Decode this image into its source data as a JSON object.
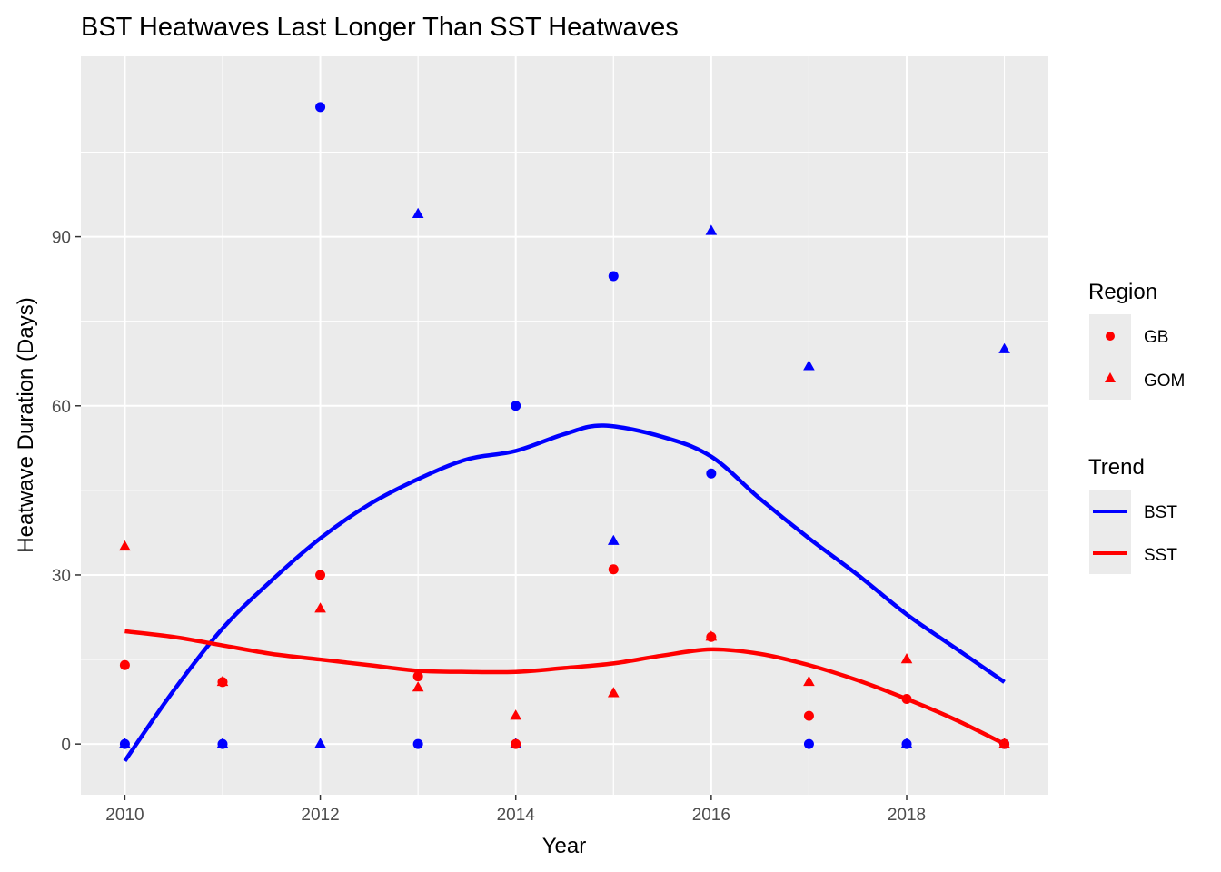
{
  "chart_data": {
    "type": "scatter",
    "title": "BST Heatwaves Last Longer Than SST Heatwaves",
    "xlabel": "Year",
    "ylabel": "Heatwave Duration (Days)",
    "xlim": [
      2009.55,
      2019.45
    ],
    "ylim": [
      -9,
      122
    ],
    "x_ticks": [
      2010,
      2012,
      2014,
      2016,
      2018
    ],
    "y_ticks": [
      0,
      30,
      60,
      90
    ],
    "grid": true,
    "colors": {
      "BST": "#0000FF",
      "SST": "#FF0000",
      "panel": "#EBEBEB",
      "grid": "#FFFFFF"
    },
    "points": [
      {
        "x": 2010,
        "y": 0,
        "region": "GB",
        "trend": "BST"
      },
      {
        "x": 2010,
        "y": 0,
        "region": "GOM",
        "trend": "BST"
      },
      {
        "x": 2011,
        "y": 0,
        "region": "GB",
        "trend": "BST"
      },
      {
        "x": 2011,
        "y": 0,
        "region": "GOM",
        "trend": "BST"
      },
      {
        "x": 2012,
        "y": 113,
        "region": "GB",
        "trend": "BST"
      },
      {
        "x": 2012,
        "y": 0,
        "region": "GOM",
        "trend": "BST"
      },
      {
        "x": 2013,
        "y": 0,
        "region": "GB",
        "trend": "BST"
      },
      {
        "x": 2013,
        "y": 94,
        "region": "GOM",
        "trend": "BST"
      },
      {
        "x": 2014,
        "y": 60,
        "region": "GB",
        "trend": "BST"
      },
      {
        "x": 2014,
        "y": 0,
        "region": "GOM",
        "trend": "BST"
      },
      {
        "x": 2015,
        "y": 83,
        "region": "GB",
        "trend": "BST"
      },
      {
        "x": 2015,
        "y": 36,
        "region": "GOM",
        "trend": "BST"
      },
      {
        "x": 2016,
        "y": 48,
        "region": "GB",
        "trend": "BST"
      },
      {
        "x": 2016,
        "y": 91,
        "region": "GOM",
        "trend": "BST"
      },
      {
        "x": 2017,
        "y": 0,
        "region": "GB",
        "trend": "BST"
      },
      {
        "x": 2017,
        "y": 67,
        "region": "GOM",
        "trend": "BST"
      },
      {
        "x": 2018,
        "y": 0,
        "region": "GB",
        "trend": "BST"
      },
      {
        "x": 2018,
        "y": 0,
        "region": "GOM",
        "trend": "BST"
      },
      {
        "x": 2019,
        "y": 0,
        "region": "GB",
        "trend": "BST"
      },
      {
        "x": 2019,
        "y": 70,
        "region": "GOM",
        "trend": "BST"
      },
      {
        "x": 2010,
        "y": 14,
        "region": "GB",
        "trend": "SST"
      },
      {
        "x": 2010,
        "y": 35,
        "region": "GOM",
        "trend": "SST"
      },
      {
        "x": 2011,
        "y": 11,
        "region": "GB",
        "trend": "SST"
      },
      {
        "x": 2011,
        "y": 11,
        "region": "GOM",
        "trend": "SST"
      },
      {
        "x": 2012,
        "y": 30,
        "region": "GB",
        "trend": "SST"
      },
      {
        "x": 2012,
        "y": 24,
        "region": "GOM",
        "trend": "SST"
      },
      {
        "x": 2013,
        "y": 12,
        "region": "GB",
        "trend": "SST"
      },
      {
        "x": 2013,
        "y": 10,
        "region": "GOM",
        "trend": "SST"
      },
      {
        "x": 2014,
        "y": 0,
        "region": "GB",
        "trend": "SST"
      },
      {
        "x": 2014,
        "y": 5,
        "region": "GOM",
        "trend": "SST"
      },
      {
        "x": 2015,
        "y": 31,
        "region": "GB",
        "trend": "SST"
      },
      {
        "x": 2015,
        "y": 9,
        "region": "GOM",
        "trend": "SST"
      },
      {
        "x": 2016,
        "y": 19,
        "region": "GB",
        "trend": "SST"
      },
      {
        "x": 2016,
        "y": 19,
        "region": "GOM",
        "trend": "SST"
      },
      {
        "x": 2017,
        "y": 5,
        "region": "GB",
        "trend": "SST"
      },
      {
        "x": 2017,
        "y": 11,
        "region": "GOM",
        "trend": "SST"
      },
      {
        "x": 2018,
        "y": 8,
        "region": "GB",
        "trend": "SST"
      },
      {
        "x": 2018,
        "y": 15,
        "region": "GOM",
        "trend": "SST"
      },
      {
        "x": 2019,
        "y": 0,
        "region": "GB",
        "trend": "SST"
      },
      {
        "x": 2019,
        "y": 0,
        "region": "GOM",
        "trend": "SST"
      }
    ],
    "trend_lines": [
      {
        "name": "BST",
        "x": [
          2010,
          2010.5,
          2011,
          2011.5,
          2012,
          2012.5,
          2013,
          2013.5,
          2014,
          2014.5,
          2014.9,
          2015.5,
          2016,
          2016.5,
          2017,
          2017.5,
          2018,
          2018.5,
          2019
        ],
        "y": [
          -3,
          9.5,
          20.5,
          29,
          36.5,
          42.5,
          47,
          50.5,
          52,
          55,
          56.5,
          54.5,
          51,
          43.5,
          36.5,
          30,
          23,
          17,
          11
        ]
      },
      {
        "name": "SST",
        "x": [
          2010,
          2010.5,
          2011,
          2011.5,
          2012,
          2012.5,
          2013,
          2013.5,
          2014,
          2014.5,
          2015,
          2015.5,
          2016,
          2016.5,
          2017,
          2017.5,
          2018,
          2018.5,
          2019
        ],
        "y": [
          20,
          19,
          17.5,
          16,
          15,
          14,
          13,
          12.8,
          12.8,
          13.5,
          14.3,
          15.7,
          16.8,
          16,
          14,
          11.3,
          8,
          4.3,
          0
        ]
      }
    ],
    "legend": {
      "placement": "right",
      "region_title": "Region",
      "region_items": [
        {
          "label": "GB",
          "shape": "circle"
        },
        {
          "label": "GOM",
          "shape": "triangle"
        }
      ],
      "trend_title": "Trend",
      "trend_items": [
        {
          "label": "BST"
        },
        {
          "label": "SST"
        }
      ]
    }
  }
}
